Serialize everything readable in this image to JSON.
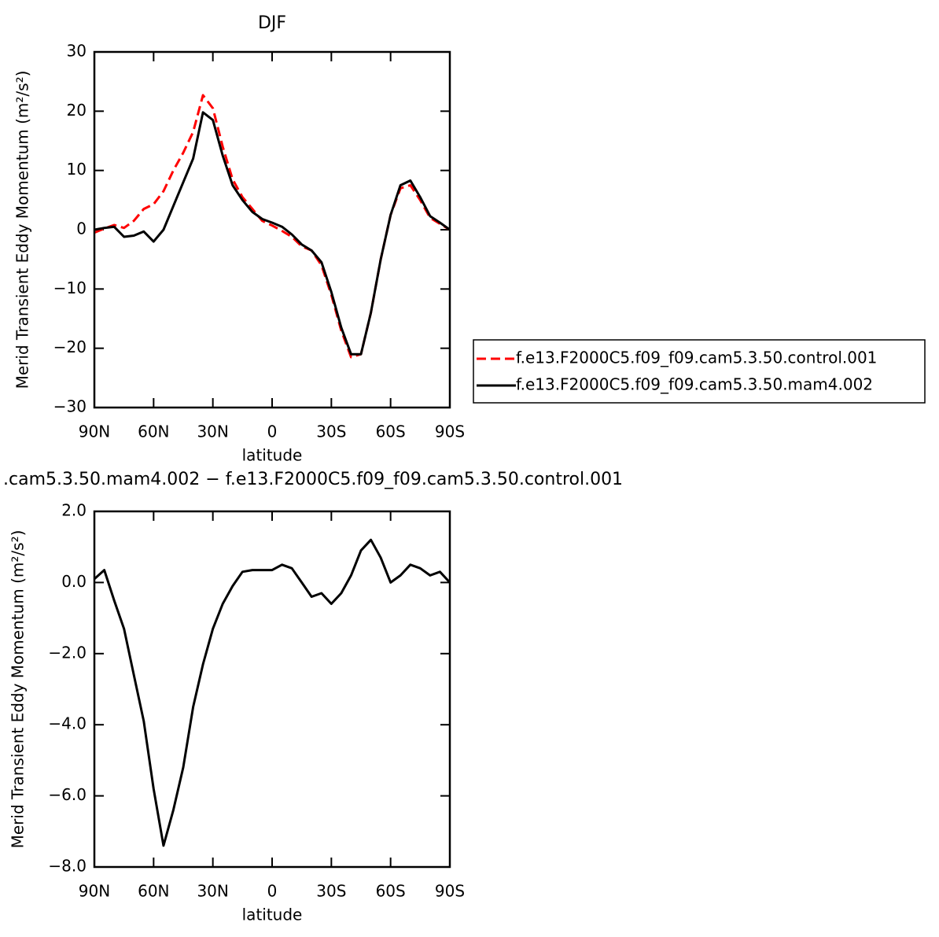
{
  "chart_data": [
    {
      "type": "line",
      "title": "DJF",
      "xlabel": "latitude",
      "ylabel": "Merid Transient Eddy Momentum (m²/s²)",
      "x": [
        90,
        85,
        80,
        75,
        70,
        65,
        60,
        55,
        50,
        45,
        40,
        35,
        30,
        25,
        20,
        15,
        10,
        5,
        0,
        -5,
        -10,
        -15,
        -20,
        -25,
        -30,
        -35,
        -40,
        -45,
        -50,
        -55,
        -60,
        -65,
        -70,
        -75,
        -80,
        -85,
        -90
      ],
      "xlim": [
        90,
        -90
      ],
      "xticks": [
        {
          "value": 90,
          "label": "90N"
        },
        {
          "value": 60,
          "label": "60N"
        },
        {
          "value": 30,
          "label": "30N"
        },
        0,
        {
          "value": -30,
          "label": "30S"
        },
        {
          "value": -60,
          "label": "60S"
        },
        {
          "value": -90,
          "label": "90S"
        }
      ],
      "ylim": [
        -30,
        30
      ],
      "yticks": [
        {
          "value": -30,
          "label": "−30"
        },
        {
          "value": -20,
          "label": "−20"
        },
        {
          "value": -10,
          "label": "−10"
        },
        0,
        10,
        20,
        30
      ],
      "legend_position": "right",
      "series": [
        {
          "name": "f.e13.F2000C5.f09_f09.cam5.3.50.control.001",
          "color": "#ff0000",
          "style": "dashed",
          "values": [
            -0.5,
            0.2,
            0.8,
            0.3,
            1.5,
            3.5,
            4.3,
            6.5,
            10,
            13,
            16.5,
            22.7,
            20.5,
            14,
            8.5,
            5.5,
            3.5,
            1.5,
            0.7,
            -0.2,
            -1.2,
            -2.8,
            -3.5,
            -6,
            -11,
            -17,
            -21.5,
            -21,
            -14,
            -5,
            2.5,
            7,
            7.5,
            5,
            2,
            1,
            0
          ]
        },
        {
          "name": "f.e13.F2000C5.f09_f09.cam5.3.50.mam4.002",
          "color": "#000000",
          "style": "solid",
          "values": [
            0,
            0.3,
            0.5,
            -1.2,
            -1,
            -0.3,
            -2,
            0,
            4,
            8,
            12,
            19.8,
            18.5,
            12.5,
            7.5,
            5,
            3,
            1.8,
            1.2,
            0.5,
            -0.8,
            -2.5,
            -3.5,
            -5.5,
            -10.5,
            -16.5,
            -21,
            -21,
            -14,
            -5,
            2.5,
            7.5,
            8.3,
            5.5,
            2.3,
            1.2,
            0
          ]
        }
      ]
    },
    {
      "type": "line",
      "title": ".cam5.3.50.mam4.002 − f.e13.F2000C5.f09_f09.cam5.3.50.control.001",
      "xlabel": "latitude",
      "ylabel": "Merid Transient Eddy Momentum (m²/s²)",
      "x": [
        90,
        85,
        80,
        75,
        70,
        65,
        60,
        55,
        50,
        45,
        40,
        35,
        30,
        25,
        20,
        15,
        10,
        5,
        0,
        -5,
        -10,
        -15,
        -20,
        -25,
        -30,
        -35,
        -40,
        -45,
        -50,
        -55,
        -60,
        -65,
        -70,
        -75,
        -80,
        -85,
        -90
      ],
      "xlim": [
        90,
        -90
      ],
      "xticks": [
        {
          "value": 90,
          "label": "90N"
        },
        {
          "value": 60,
          "label": "60N"
        },
        {
          "value": 30,
          "label": "30N"
        },
        0,
        {
          "value": -30,
          "label": "30S"
        },
        {
          "value": -60,
          "label": "60S"
        },
        {
          "value": -90,
          "label": "90S"
        }
      ],
      "ylim": [
        -8,
        2
      ],
      "yticks": [
        {
          "value": -8,
          "label": "−8.0"
        },
        {
          "value": -6,
          "label": "−6.0"
        },
        {
          "value": -4,
          "label": "−4.0"
        },
        {
          "value": -2,
          "label": "−2.0"
        },
        {
          "value": 0,
          "label": "0.0"
        },
        {
          "value": 2,
          "label": "2.0"
        }
      ],
      "series": [
        {
          "color": "#000000",
          "style": "solid",
          "values": [
            0.1,
            0.35,
            -0.5,
            -1.3,
            -2.6,
            -3.9,
            -5.8,
            -7.4,
            -6.4,
            -5.2,
            -3.5,
            -2.3,
            -1.3,
            -0.6,
            -0.1,
            0.3,
            0.35,
            0.35,
            0.35,
            0.5,
            0.4,
            0.0,
            -0.4,
            -0.3,
            -0.6,
            -0.3,
            0.2,
            0.9,
            1.2,
            0.7,
            0.0,
            0.2,
            0.5,
            0.4,
            0.2,
            0.3,
            0.0
          ]
        }
      ]
    }
  ]
}
